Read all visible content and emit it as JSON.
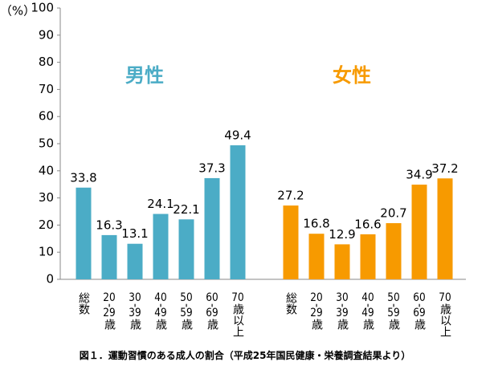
{
  "chart_data": {
    "type": "bar",
    "y_label": "（%）",
    "caption": "図１．運動習慣のある成人の割合（平成25年国民健康・栄養調査結果より）",
    "categories": [
      "総数",
      "20-29歳",
      "30-39歳",
      "40-49歳",
      "50-59歳",
      "60-69歳",
      "70歳以上"
    ],
    "series": [
      {
        "name": "男性",
        "color": "#4bacc6",
        "values": [
          33.8,
          16.3,
          13.1,
          24.1,
          22.1,
          37.3,
          49.4
        ]
      },
      {
        "name": "女性",
        "color": "#f79a00",
        "values": [
          27.2,
          16.8,
          12.9,
          16.6,
          20.7,
          34.9,
          37.2
        ]
      }
    ],
    "ylim": [
      0,
      100
    ],
    "yticks": [
      0,
      10,
      20,
      30,
      40,
      50,
      60,
      70,
      80,
      90,
      100
    ]
  }
}
